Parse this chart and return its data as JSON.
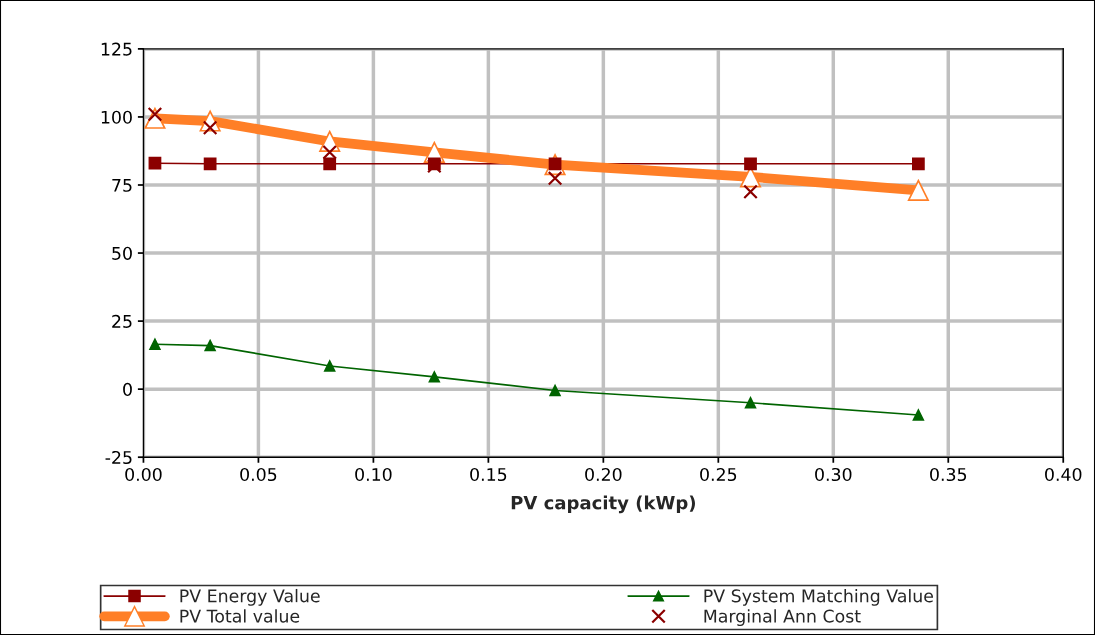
{
  "chart_data": {
    "type": "line",
    "xlabel": "PV capacity (kWp)",
    "x": [
      0.005,
      0.029,
      0.081,
      0.1265,
      0.179,
      0.264,
      0.337
    ],
    "series": [
      {
        "name": "PV Energy Value",
        "color": "#8b0000",
        "marker": "square",
        "values": [
          83,
          82.8,
          82.8,
          82.8,
          82.8,
          82.8,
          82.8
        ]
      },
      {
        "name": "PV System Matching Value",
        "color": "#006400",
        "marker": "triangle",
        "values": [
          16.5,
          16,
          8.5,
          4.5,
          -0.5,
          -5,
          -9.5
        ]
      },
      {
        "name": "PV Total value",
        "color": "#ff7f27",
        "marker": "triangle",
        "values": [
          99.5,
          98.5,
          91,
          87,
          82.5,
          78,
          73
        ]
      },
      {
        "name": "Marginal Ann Cost",
        "type": "scatter",
        "color": "#8b0000",
        "marker": "cross",
        "values": [
          101,
          96,
          87,
          82,
          77.5,
          72.5,
          null
        ]
      }
    ],
    "xlim": [
      0,
      0.4
    ],
    "xticks": [
      {
        "value": 0,
        "label": "0.00"
      },
      {
        "value": 0.05,
        "label": "0.05"
      },
      {
        "value": 0.1,
        "label": "0.10"
      },
      {
        "value": 0.15,
        "label": "0.15"
      },
      {
        "value": 0.2,
        "label": "0.20"
      },
      {
        "value": 0.25,
        "label": "0.25"
      },
      {
        "value": 0.3,
        "label": "0.30"
      },
      {
        "value": 0.35,
        "label": "0.35"
      },
      {
        "value": 0.4,
        "label": "0.40"
      }
    ],
    "ylim": [
      -25,
      125
    ],
    "yticks": [
      -25,
      0,
      25,
      50,
      75,
      100,
      125
    ],
    "grid": true,
    "legend": "bottom"
  }
}
